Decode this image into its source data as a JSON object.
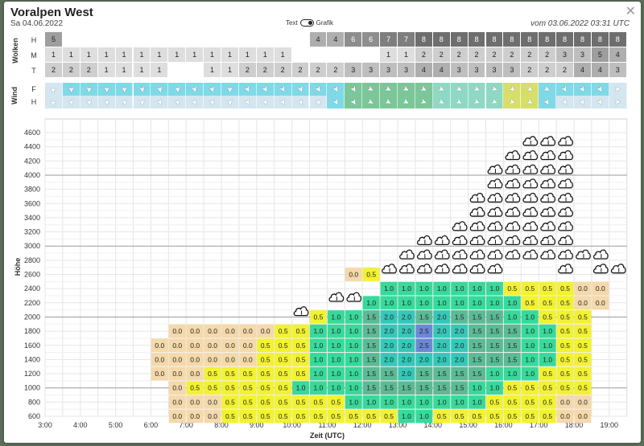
{
  "header": {
    "title": "Voralpen West",
    "date": "Sa 04.06.2022",
    "issued": "vom 03.06.2022 03:31 UTC",
    "toggle_left": "Text",
    "toggle_right": "Grafik"
  },
  "clouds_panel": {
    "label": "Wolken",
    "rows": [
      {
        "name": "H",
        "cells": [
          "5",
          "",
          "",
          "",
          "",
          "",
          "",
          "",
          "",
          "",
          "",
          "",
          "",
          "",
          "",
          "4",
          "4",
          "6",
          "6",
          "7",
          "7",
          "8",
          "8",
          "8",
          "8",
          "8",
          "8",
          "8",
          "8",
          "8",
          "8",
          "8",
          "8"
        ]
      },
      {
        "name": "M",
        "cells": [
          "1",
          "1",
          "1",
          "1",
          "1",
          "1",
          "1",
          "1",
          "1",
          "1",
          "1",
          "1",
          "1",
          "1",
          "",
          "",
          "",
          "",
          "",
          "1",
          "1",
          "2",
          "2",
          "2",
          "2",
          "2",
          "2",
          "2",
          "2",
          "3",
          "3",
          "5",
          "4"
        ]
      },
      {
        "name": "T",
        "cells": [
          "2",
          "2",
          "2",
          "1",
          "1",
          "1",
          "1",
          "",
          "",
          "1",
          "1",
          "2",
          "2",
          "2",
          "2",
          "2",
          "2",
          "3",
          "3",
          "3",
          "3",
          "4",
          "4",
          "3",
          "3",
          "3",
          "3",
          "2",
          "2",
          "2",
          "4",
          "4",
          "3"
        ]
      }
    ]
  },
  "wind_panel": {
    "label": "Wind",
    "rows": [
      {
        "name": "F",
        "dirs": [
          210,
          90,
          90,
          90,
          90,
          80,
          80,
          80,
          70,
          70,
          90,
          60,
          60,
          60,
          70,
          60,
          60,
          60,
          30,
          30,
          30,
          30,
          30,
          30,
          30,
          20,
          40,
          30,
          30,
          60,
          60,
          60,
          0
        ]
      },
      {
        "name": "H",
        "dirs": [
          210,
          70,
          80,
          80,
          80,
          80,
          70,
          70,
          70,
          70,
          80,
          60,
          60,
          60,
          70,
          70,
          60,
          60,
          30,
          30,
          30,
          20,
          30,
          30,
          20,
          20,
          20,
          30,
          60,
          50,
          60,
          60,
          0
        ]
      }
    ]
  },
  "height_chart": {
    "ylabel": "Höhe",
    "xlabel": "Zeit (UTC)",
    "y_ticks": [
      "4600",
      "4400",
      "4200",
      "4000",
      "3800",
      "3600",
      "3400",
      "3200",
      "3000",
      "2800",
      "2600",
      "2400",
      "2200",
      "2000",
      "1800",
      "1600",
      "1400",
      "1200",
      "1000",
      "800",
      "600"
    ],
    "x_ticks": [
      "3:00",
      "4:00",
      "5:00",
      "6:00",
      "7:00",
      "8:00",
      "9:00",
      "10:00",
      "11:00",
      "12:00",
      "13:00",
      "14:00",
      "15:00",
      "16:00",
      "17:00",
      "18:00",
      "19:00"
    ],
    "colors": {
      "0.0": "#f5d9aa",
      "0.5": "#f2f230",
      "1.0": "#38d99a",
      "1.5": "#5cba95",
      "2.0": "#36c7b8",
      "2.5": "#6b88d6"
    },
    "rows": [
      {
        "alt": "2600",
        "start": 17,
        "cells": [
          "0.0",
          "0.5"
        ]
      },
      {
        "alt": "2400",
        "start": 14,
        "cells": [
          "",
          "",
          "",
          "",
          "",
          "1.0",
          "1.0",
          "1.0",
          "1.0",
          "1.0",
          "1.0",
          "1.0",
          "0.5",
          "0.5",
          "0.5",
          "0.5",
          "0.0",
          "0.0"
        ]
      },
      {
        "alt": "2200",
        "start": 14,
        "cells": [
          "",
          "",
          "",
          "",
          "1.0",
          "1.0",
          "1.0",
          "1.0",
          "1.0",
          "1.0",
          "1.0",
          "1.0",
          "1.0",
          "0.5",
          "0.5",
          "0.5",
          "0.0",
          "0.0"
        ]
      },
      {
        "alt": "2000",
        "start": 15,
        "cells": [
          "0.5",
          "1.0",
          "1.0",
          "1.5",
          "2.0",
          "2.0",
          "1.5",
          "2.0",
          "1.5",
          "1.5",
          "1.5",
          "1.0",
          "1.0",
          "0.5",
          "0.5",
          "0.5"
        ]
      },
      {
        "alt": "1800",
        "start": 7,
        "cells": [
          "0.0",
          "0.0",
          "0.0",
          "0.0",
          "0.0",
          "0.0",
          "0.5",
          "0.5",
          "1.0",
          "1.0",
          "1.0",
          "1.5",
          "2.0",
          "2.0",
          "2.5",
          "2.0",
          "2.0",
          "1.5",
          "1.5",
          "1.5",
          "1.0",
          "1.0",
          "0.5",
          "0.5"
        ]
      },
      {
        "alt": "1600",
        "start": 6,
        "cells": [
          "0.0",
          "0.0",
          "0.0",
          "0.0",
          "0.0",
          "0.0",
          "0.5",
          "0.5",
          "0.5",
          "1.0",
          "1.0",
          "1.0",
          "1.5",
          "2.0",
          "2.0",
          "2.5",
          "2.0",
          "2.0",
          "1.5",
          "1.5",
          "1.5",
          "1.0",
          "1.0",
          "0.5",
          "0.5"
        ]
      },
      {
        "alt": "1400",
        "start": 6,
        "cells": [
          "0.0",
          "0.0",
          "0.0",
          "0.0",
          "0.0",
          "0.0",
          "0.5",
          "0.5",
          "0.5",
          "1.0",
          "1.0",
          "1.0",
          "1.5",
          "2.0",
          "2.0",
          "2.0",
          "2.0",
          "2.0",
          "1.5",
          "1.5",
          "1.5",
          "1.0",
          "1.0",
          "0.5",
          "0.5"
        ]
      },
      {
        "alt": "1200",
        "start": 6,
        "cells": [
          "0.0",
          "0.0",
          "0.0",
          "0.5",
          "0.5",
          "0.5",
          "0.5",
          "0.5",
          "0.5",
          "1.0",
          "1.0",
          "1.0",
          "1.5",
          "1.5",
          "2.0",
          "1.5",
          "1.5",
          "1.5",
          "1.5",
          "1.0",
          "1.0",
          "1.0",
          "0.5",
          "0.5",
          "0.5"
        ]
      },
      {
        "alt": "1000",
        "start": 7,
        "cells": [
          "0.0",
          "0.5",
          "0.5",
          "0.5",
          "0.5",
          "0.5",
          "0.5",
          "1.0",
          "1.0",
          "1.0",
          "1.0",
          "1.5",
          "1.5",
          "1.5",
          "1.5",
          "1.5",
          "1.5",
          "1.0",
          "1.0",
          "0.5",
          "0.5",
          "0.5",
          "0.5",
          "0.5"
        ]
      },
      {
        "alt": "800",
        "start": 7,
        "cells": [
          "0.0",
          "0.0",
          "0.0",
          "0.5",
          "0.5",
          "0.5",
          "0.5",
          "0.5",
          "0.5",
          "0.5",
          "1.0",
          "1.0",
          "1.0",
          "1.0",
          "1.0",
          "1.0",
          "1.0",
          "1.0",
          "0.5",
          "0.5",
          "0.5",
          "0.5",
          "0.0",
          "0.0"
        ]
      },
      {
        "alt": "600",
        "start": 7,
        "cells": [
          "0.0",
          "0.0",
          "0.0",
          "0.5",
          "0.5",
          "0.5",
          "0.5",
          "0.5",
          "0.5",
          "0.5",
          "0.5",
          "0.5",
          "0.5",
          "1.0",
          "1.0",
          "0.5",
          "0.5",
          "0.5",
          "0.5",
          "0.5",
          "0.5",
          "0.5",
          "0.0",
          "0.0"
        ]
      }
    ],
    "clouds": [
      {
        "col": 14,
        "alt": "2100"
      },
      {
        "col": 16,
        "alt": "2300"
      },
      {
        "col": 17,
        "alt": "2300"
      },
      {
        "col": 19,
        "alt": "2700"
      },
      {
        "col": 20,
        "alt": "2700"
      },
      {
        "col": 21,
        "alt": "2700"
      },
      {
        "col": 22,
        "alt": "2700"
      },
      {
        "col": 23,
        "alt": "2700"
      },
      {
        "col": 24,
        "alt": "2700"
      },
      {
        "col": 25,
        "alt": "2700"
      },
      {
        "col": 29,
        "alt": "2700"
      },
      {
        "col": 31,
        "alt": "2700"
      },
      {
        "col": 32,
        "alt": "2700"
      },
      {
        "col": 20,
        "alt": "2900"
      },
      {
        "col": 21,
        "alt": "2900"
      },
      {
        "col": 22,
        "alt": "2900"
      },
      {
        "col": 23,
        "alt": "2900"
      },
      {
        "col": 24,
        "alt": "2900"
      },
      {
        "col": 25,
        "alt": "2900"
      },
      {
        "col": 26,
        "alt": "2900"
      },
      {
        "col": 27,
        "alt": "2900"
      },
      {
        "col": 28,
        "alt": "2900"
      },
      {
        "col": 29,
        "alt": "2900"
      },
      {
        "col": 30,
        "alt": "2900"
      },
      {
        "col": 31,
        "alt": "2900"
      },
      {
        "col": 21,
        "alt": "3100"
      },
      {
        "col": 22,
        "alt": "3100"
      },
      {
        "col": 23,
        "alt": "3100"
      },
      {
        "col": 24,
        "alt": "3100"
      },
      {
        "col": 25,
        "alt": "3100"
      },
      {
        "col": 26,
        "alt": "3100"
      },
      {
        "col": 27,
        "alt": "3100"
      },
      {
        "col": 28,
        "alt": "3100"
      },
      {
        "col": 29,
        "alt": "3100"
      },
      {
        "col": 23,
        "alt": "3300"
      },
      {
        "col": 24,
        "alt": "3300"
      },
      {
        "col": 25,
        "alt": "3300"
      },
      {
        "col": 26,
        "alt": "3300"
      },
      {
        "col": 27,
        "alt": "3300"
      },
      {
        "col": 28,
        "alt": "3300"
      },
      {
        "col": 29,
        "alt": "3300"
      },
      {
        "col": 24,
        "alt": "3500"
      },
      {
        "col": 25,
        "alt": "3500"
      },
      {
        "col": 26,
        "alt": "3500"
      },
      {
        "col": 27,
        "alt": "3500"
      },
      {
        "col": 28,
        "alt": "3500"
      },
      {
        "col": 29,
        "alt": "3500"
      },
      {
        "col": 24,
        "alt": "3700"
      },
      {
        "col": 25,
        "alt": "3700"
      },
      {
        "col": 26,
        "alt": "3700"
      },
      {
        "col": 27,
        "alt": "3700"
      },
      {
        "col": 28,
        "alt": "3700"
      },
      {
        "col": 29,
        "alt": "3700"
      },
      {
        "col": 25,
        "alt": "3900"
      },
      {
        "col": 26,
        "alt": "3900"
      },
      {
        "col": 27,
        "alt": "3900"
      },
      {
        "col": 28,
        "alt": "3900"
      },
      {
        "col": 29,
        "alt": "3900"
      },
      {
        "col": 25,
        "alt": "4100"
      },
      {
        "col": 26,
        "alt": "4100"
      },
      {
        "col": 27,
        "alt": "4100"
      },
      {
        "col": 28,
        "alt": "4100"
      },
      {
        "col": 29,
        "alt": "4100"
      },
      {
        "col": 26,
        "alt": "4300"
      },
      {
        "col": 27,
        "alt": "4300"
      },
      {
        "col": 28,
        "alt": "4300"
      },
      {
        "col": 29,
        "alt": "4300"
      },
      {
        "col": 27,
        "alt": "4500"
      },
      {
        "col": 28,
        "alt": "4500"
      },
      {
        "col": 29,
        "alt": "4500"
      }
    ]
  }
}
